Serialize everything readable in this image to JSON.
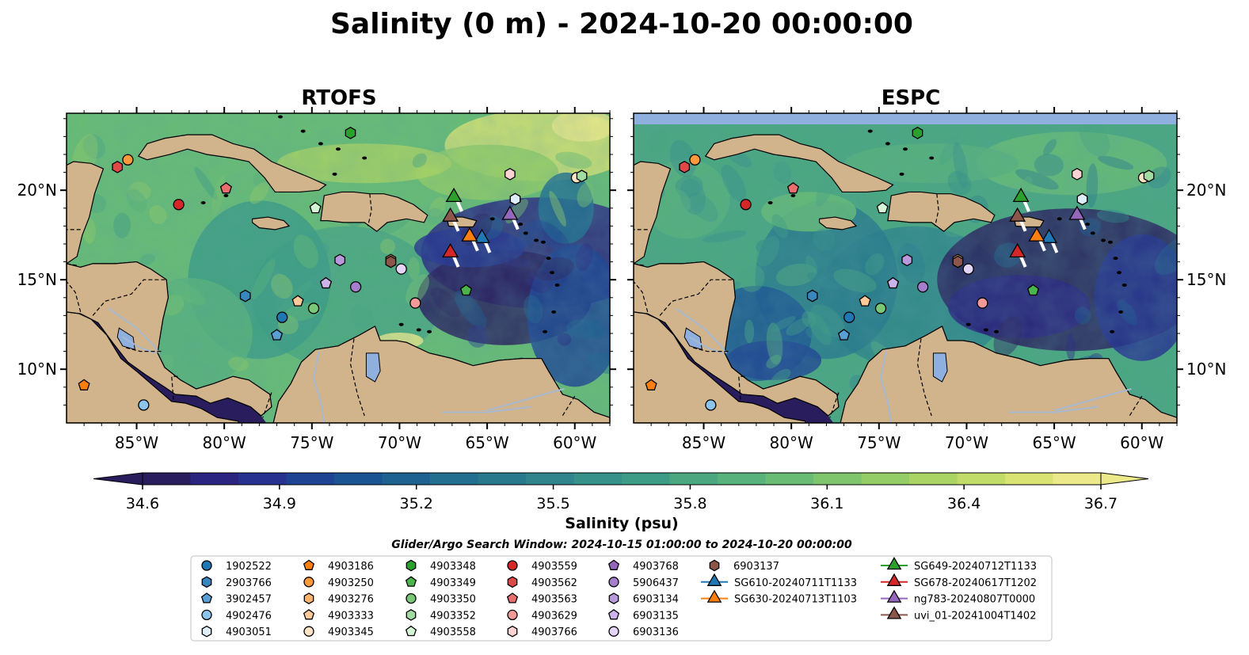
{
  "title": "Salinity (0 m) - 2024-10-20 00:00:00",
  "panels": [
    {
      "title": "RTOFS",
      "has_nodata_strip": false
    },
    {
      "title": "ESPC",
      "has_nodata_strip": true
    }
  ],
  "map_extent": {
    "lon": [
      -89,
      -58
    ],
    "lat": [
      7,
      24.3
    ]
  },
  "lon_ticks": [
    {
      "value": -85,
      "label": "85°W"
    },
    {
      "value": -80,
      "label": "80°W"
    },
    {
      "value": -75,
      "label": "75°W"
    },
    {
      "value": -70,
      "label": "70°W"
    },
    {
      "value": -65,
      "label": "65°W"
    },
    {
      "value": -60,
      "label": "60°W"
    }
  ],
  "lat_ticks": [
    {
      "value": 10,
      "label": "10°N"
    },
    {
      "value": 15,
      "label": "15°N"
    },
    {
      "value": 20,
      "label": "20°N"
    }
  ],
  "colorbar": {
    "label": "Salinity (psu)",
    "min": 34.6,
    "max": 36.7,
    "ticks": [
      "34.6",
      "34.9",
      "35.2",
      "35.5",
      "35.8",
      "36.1",
      "36.4",
      "36.7"
    ],
    "extend": "both",
    "colors": [
      "#2a1d5d",
      "#2b2480",
      "#27318f",
      "#1f4393",
      "#1b5493",
      "#1e6291",
      "#236f8f",
      "#29798d",
      "#2f858b",
      "#359189",
      "#3d9c85",
      "#4aa780",
      "#58b27b",
      "#68bc74",
      "#7ec56d",
      "#94cc66",
      "#aad463",
      "#c2dc6a",
      "#d9e374",
      "#ece98a"
    ]
  },
  "subtitle": "Glider/Argo Search Window: 2024-10-15 01:00:00 to 2024-10-20 00:00:00",
  "colors": {
    "land": "#d2b48c",
    "nodata": "#8fb0df",
    "rivers": "#a6b9d2"
  },
  "legend": {
    "columns": [
      [
        {
          "label": "1902522",
          "marker": "circle",
          "color": "#1f77b4"
        },
        {
          "label": "2903766",
          "marker": "hexagon",
          "color": "#3a87c0"
        },
        {
          "label": "3902457",
          "marker": "pentagon",
          "color": "#5a9fd4"
        },
        {
          "label": "4902476",
          "marker": "circle",
          "color": "#8cc4ea"
        },
        {
          "label": "4903051",
          "marker": "hexagon",
          "color": "#ddeefa"
        }
      ],
      [
        {
          "label": "4903186",
          "marker": "pentagon",
          "color": "#ff7f0e"
        },
        {
          "label": "4903250",
          "marker": "circle",
          "color": "#ff9a3c"
        },
        {
          "label": "4903276",
          "marker": "hexagon",
          "color": "#ffb26b"
        },
        {
          "label": "4903333",
          "marker": "pentagon",
          "color": "#ffc99a"
        },
        {
          "label": "4903345",
          "marker": "circle",
          "color": "#ffe3c6"
        }
      ],
      [
        {
          "label": "4903348",
          "marker": "hexagon",
          "color": "#2ca02c"
        },
        {
          "label": "4903349",
          "marker": "pentagon",
          "color": "#4cb44c"
        },
        {
          "label": "4903350",
          "marker": "circle",
          "color": "#78c878"
        },
        {
          "label": "4903352",
          "marker": "hexagon",
          "color": "#a3dca3"
        },
        {
          "label": "4903558",
          "marker": "pentagon",
          "color": "#d6f5d6"
        }
      ],
      [
        {
          "label": "4903559",
          "marker": "circle",
          "color": "#d62728"
        },
        {
          "label": "4903562",
          "marker": "hexagon",
          "color": "#e04848"
        },
        {
          "label": "4903563",
          "marker": "pentagon",
          "color": "#ea6e6e"
        },
        {
          "label": "4903629",
          "marker": "circle",
          "color": "#f29a9a"
        },
        {
          "label": "4903766",
          "marker": "hexagon",
          "color": "#fbd3d3"
        }
      ],
      [
        {
          "label": "4903768",
          "marker": "pentagon",
          "color": "#9467bd"
        },
        {
          "label": "5906437",
          "marker": "circle",
          "color": "#a57fcc"
        },
        {
          "label": "6903134",
          "marker": "hexagon",
          "color": "#b999dc"
        },
        {
          "label": "6903135",
          "marker": "pentagon",
          "color": "#ccb4ea"
        },
        {
          "label": "6903136",
          "marker": "circle",
          "color": "#e4d4f6"
        }
      ],
      [
        {
          "label": "6903137",
          "marker": "hexagon",
          "color": "#8c564b"
        },
        {
          "label": "SG610-20240711T1133",
          "marker": "triangle",
          "color": "#1f77b4"
        },
        {
          "label": "SG630-20240713T1103",
          "marker": "triangle",
          "color": "#ff7f0e"
        }
      ],
      [
        {
          "label": "SG649-20240712T1133",
          "marker": "triangle",
          "color": "#2ca02c"
        },
        {
          "label": "SG678-20240617T1202",
          "marker": "triangle",
          "color": "#d62728"
        },
        {
          "label": "ng783-20240807T0000",
          "marker": "triangle",
          "color": "#9467bd"
        },
        {
          "label": "uvi_01-20241004T1402",
          "marker": "triangle",
          "color": "#8c564b"
        }
      ]
    ]
  },
  "stations": [
    {
      "id": "1902522",
      "lon": -76.7,
      "lat": 12.9
    },
    {
      "id": "2903766",
      "lon": -78.8,
      "lat": 14.1
    },
    {
      "id": "3902457",
      "lon": -77.0,
      "lat": 11.9
    },
    {
      "id": "4902476",
      "lon": -84.6,
      "lat": 8.0
    },
    {
      "id": "4903051",
      "lon": -63.4,
      "lat": 19.5
    },
    {
      "id": "4903186",
      "lon": -88.0,
      "lat": 9.1
    },
    {
      "id": "4903250",
      "lon": -85.5,
      "lat": 21.7
    },
    {
      "id": "4903276",
      "lon": -70.5,
      "lat": 16.1
    },
    {
      "id": "4903333",
      "lon": -75.8,
      "lat": 13.8
    },
    {
      "id": "4903345",
      "lon": -59.9,
      "lat": 20.7
    },
    {
      "id": "4903348",
      "lon": -72.8,
      "lat": 23.2
    },
    {
      "id": "4903349",
      "lon": -66.2,
      "lat": 14.4
    },
    {
      "id": "4903350",
      "lon": -74.9,
      "lat": 13.4
    },
    {
      "id": "4903352",
      "lon": -59.6,
      "lat": 20.8
    },
    {
      "id": "4903558",
      "lon": -74.8,
      "lat": 19.0
    },
    {
      "id": "4903559",
      "lon": -82.6,
      "lat": 19.2
    },
    {
      "id": "4903562",
      "lon": -86.1,
      "lat": 21.3
    },
    {
      "id": "4903563",
      "lon": -79.9,
      "lat": 20.1
    },
    {
      "id": "4903629",
      "lon": -69.1,
      "lat": 13.7
    },
    {
      "id": "4903766",
      "lon": -63.7,
      "lat": 20.9
    },
    {
      "id": "4903768",
      "lon": -74.2,
      "lat": 14.8
    },
    {
      "id": "5906437",
      "lon": -72.5,
      "lat": 14.6
    },
    {
      "id": "6903134",
      "lon": -73.4,
      "lat": 16.1
    },
    {
      "id": "6903135",
      "lon": -74.2,
      "lat": 14.8
    },
    {
      "id": "6903136",
      "lon": -69.9,
      "lat": 15.6
    },
    {
      "id": "6903137",
      "lon": -70.5,
      "lat": 16.0
    },
    {
      "id": "SG610-20240711T1133",
      "lon": -65.3,
      "lat": 17.4
    },
    {
      "id": "SG630-20240713T1103",
      "lon": -66.0,
      "lat": 17.5
    },
    {
      "id": "SG649-20240712T1133",
      "lon": -66.9,
      "lat": 19.7
    },
    {
      "id": "SG678-20240617T1202",
      "lon": -67.1,
      "lat": 16.6
    },
    {
      "id": "ng783-20240807T0000",
      "lon": -63.7,
      "lat": 18.7
    },
    {
      "id": "uvi_01-20241004T1402",
      "lon": -67.1,
      "lat": 18.6
    }
  ]
}
